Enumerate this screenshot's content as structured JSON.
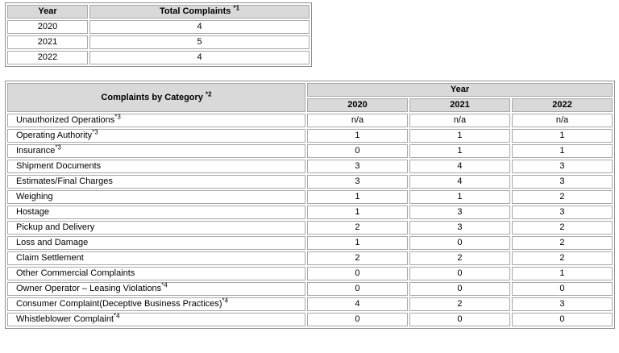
{
  "summary": {
    "year_header": "Year",
    "total_header": "Total Complaints",
    "total_note": "*1",
    "rows": [
      {
        "year": "2020",
        "total": "4"
      },
      {
        "year": "2021",
        "total": "5"
      },
      {
        "year": "2022",
        "total": "4"
      }
    ]
  },
  "category_table": {
    "category_header": "Complaints by Category",
    "category_note": "*2",
    "year_group_header": "Year",
    "years": [
      "2020",
      "2021",
      "2022"
    ],
    "rows": [
      {
        "name": "Unauthorized Operations",
        "note": "*3",
        "values": [
          "n/a",
          "n/a",
          "n/a"
        ]
      },
      {
        "name": "Operating Authority",
        "note": "*3",
        "values": [
          "1",
          "1",
          "1"
        ]
      },
      {
        "name": "Insurance",
        "note": "*3",
        "values": [
          "0",
          "1",
          "1"
        ]
      },
      {
        "name": "Shipment Documents",
        "note": "",
        "values": [
          "3",
          "4",
          "3"
        ]
      },
      {
        "name": "Estimates/Final Charges",
        "note": "",
        "values": [
          "3",
          "4",
          "3"
        ]
      },
      {
        "name": "Weighing",
        "note": "",
        "values": [
          "1",
          "1",
          "2"
        ]
      },
      {
        "name": "Hostage",
        "note": "",
        "values": [
          "1",
          "3",
          "3"
        ]
      },
      {
        "name": "Pickup and Delivery",
        "note": "",
        "values": [
          "2",
          "3",
          "2"
        ]
      },
      {
        "name": "Loss and Damage",
        "note": "",
        "values": [
          "1",
          "0",
          "2"
        ]
      },
      {
        "name": "Claim Settlement",
        "note": "",
        "values": [
          "2",
          "2",
          "2"
        ]
      },
      {
        "name": "Other Commercial Complaints",
        "note": "",
        "values": [
          "0",
          "0",
          "1"
        ]
      },
      {
        "name": "Owner Operator – Leasing Violations",
        "note": "*4",
        "values": [
          "0",
          "0",
          "0"
        ]
      },
      {
        "name": "Consumer Complaint(Deceptive Business Practices)",
        "note": "*4",
        "values": [
          "4",
          "2",
          "3"
        ]
      },
      {
        "name": "Whistleblower Complaint",
        "note": "*4",
        "values": [
          "0",
          "0",
          "0"
        ]
      }
    ]
  }
}
